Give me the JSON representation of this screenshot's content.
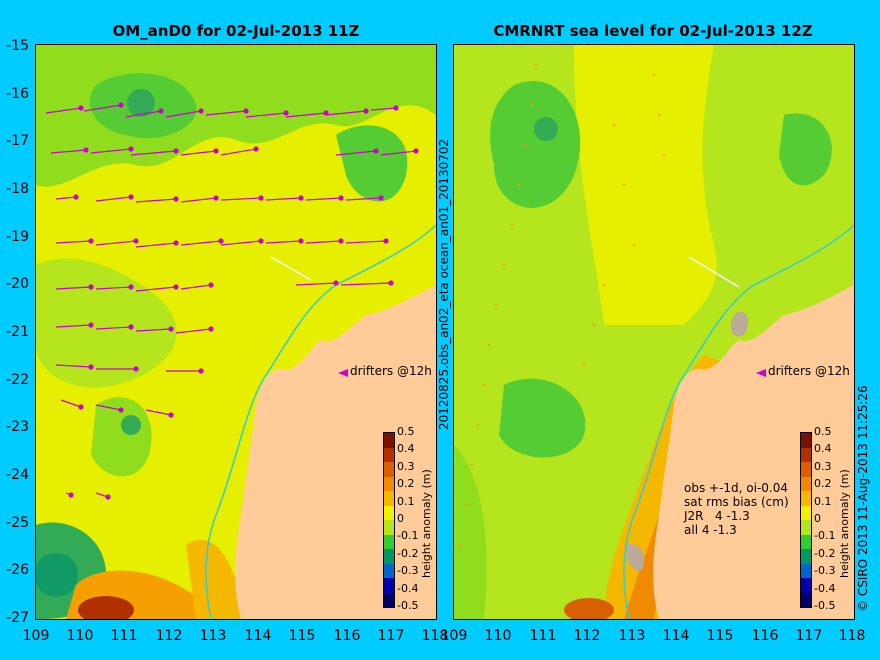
{
  "left_panel": {
    "title": "OM_anD0 for 02-Jul-2013 11Z",
    "side_label": "20120825.obs_an02_eta   ocean_an01_20130702"
  },
  "right_panel": {
    "title": "CMRNRT sea level  for 02-Jul-2013 12Z",
    "side_label": "© CSIRO 2013   11-Aug-2013 11:25:26",
    "stats": {
      "line1": "obs +-1d, oi-0.04",
      "line2": "sat rms bias (cm)",
      "line3": "J2R   4 -1.3",
      "line4": "all 4 -1.3"
    }
  },
  "drifters_label": "drifters @12h",
  "axes": {
    "y_ticks": [
      "-15",
      "-16",
      "-17",
      "-18",
      "-19",
      "-20",
      "-21",
      "-22",
      "-23",
      "-24",
      "-25",
      "-26",
      "-27"
    ],
    "x_ticks": [
      "109",
      "110",
      "111",
      "112",
      "113",
      "114",
      "115",
      "116",
      "117",
      "118"
    ],
    "lon_range": [
      109,
      118
    ],
    "lat_range": [
      -27,
      -15
    ]
  },
  "colorbar": {
    "label": "height anomaly (m)",
    "ticks": [
      "0.5",
      "0.4",
      "0.3",
      "0.2",
      "0.1",
      "0",
      "-0.1",
      "-0.2",
      "-0.3",
      "-0.4",
      "-0.5"
    ],
    "colors": [
      "#7a1200",
      "#b03000",
      "#d96000",
      "#f08a00",
      "#f5b800",
      "#f0f000",
      "#b5e61d",
      "#33cc33",
      "#009966",
      "#0066cc",
      "#0000aa",
      "#000066"
    ]
  }
}
